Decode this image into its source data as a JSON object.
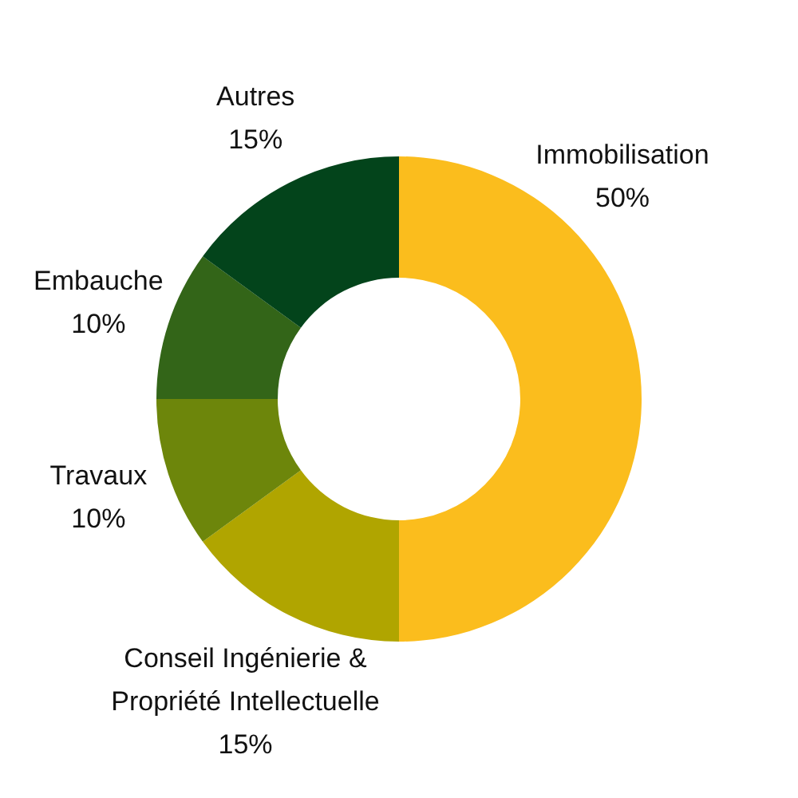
{
  "chart_data": {
    "type": "donut",
    "categories": [
      "Immobilisation",
      "Conseil Ingénierie & Propriété Intellectuelle",
      "Travaux",
      "Embauche",
      "Autres"
    ],
    "values": [
      50,
      15,
      10,
      10,
      15
    ],
    "value_labels": [
      "50%",
      "15%",
      "10%",
      "10%",
      "15%"
    ],
    "colors": [
      "#fbbd1d",
      "#b0a500",
      "#6d860b",
      "#336518",
      "#03441b"
    ]
  }
}
